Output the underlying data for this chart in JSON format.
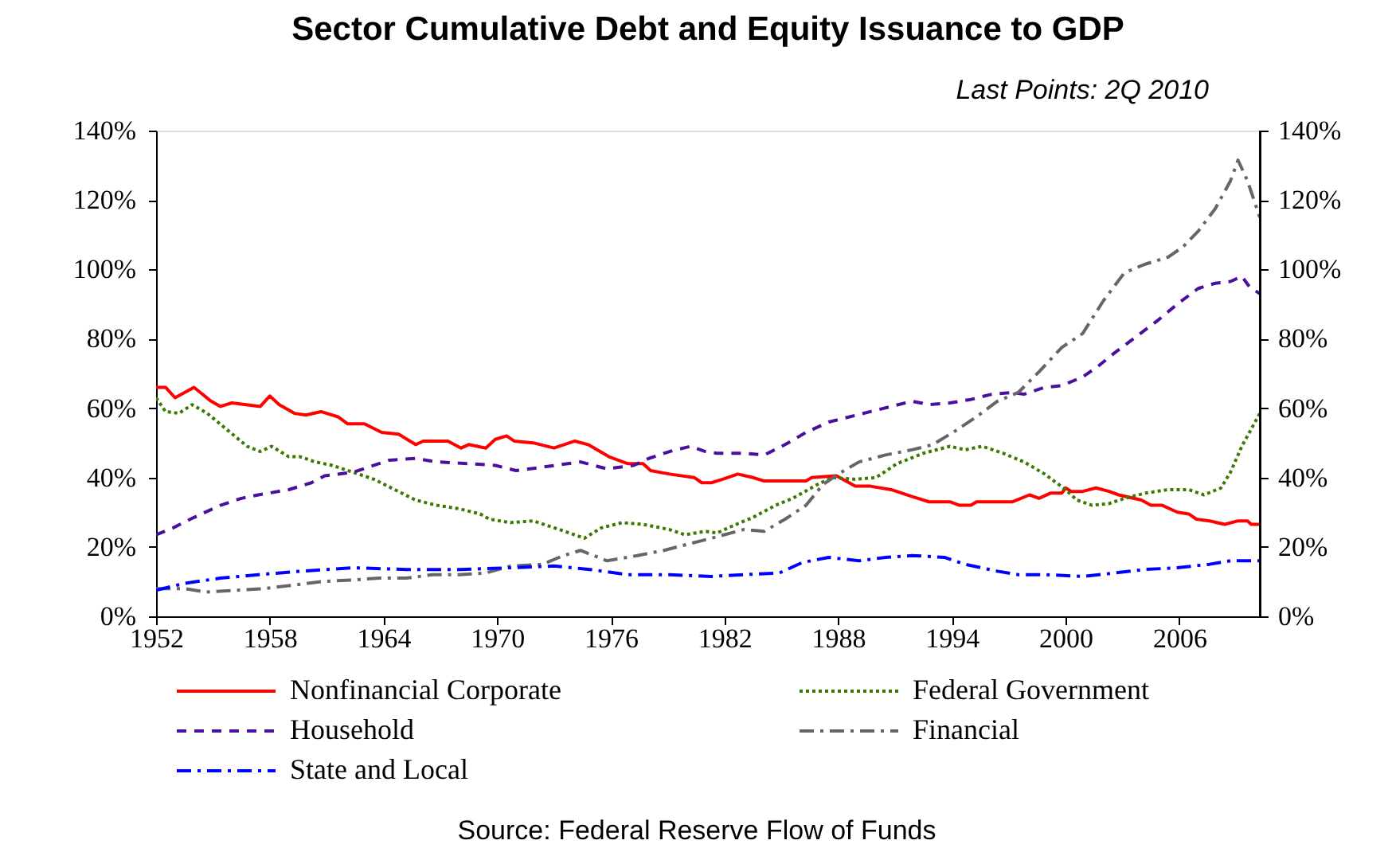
{
  "chart_data": {
    "type": "line",
    "title": "Sector Cumulative Debt and Equity Issuance to GDP",
    "subtitle": "Last Points: 2Q 2010",
    "annotations": [
      "Source: Federal Reserve Flow of Funds"
    ],
    "xlim": [
      1952,
      2010.25
    ],
    "xticks": [
      1952,
      1958,
      1964,
      1970,
      1976,
      1982,
      1988,
      1994,
      2000,
      2006
    ],
    "ylim": [
      0,
      140
    ],
    "yticks": [
      {
        "value": 0,
        "label": "0%"
      },
      {
        "value": 20,
        "label": "20%"
      },
      {
        "value": 40,
        "label": "40%"
      },
      {
        "value": 60,
        "label": "60%"
      },
      {
        "value": 80,
        "label": "80%"
      },
      {
        "value": 100,
        "label": "100%"
      },
      {
        "value": 120,
        "label": "120%"
      },
      {
        "value": 140,
        "label": "140%"
      }
    ],
    "y2lim": [
      0,
      140
    ],
    "y2ticks": [
      {
        "value": 0,
        "label": "0%"
      },
      {
        "value": 20,
        "label": "20%"
      },
      {
        "value": 40,
        "label": "40%"
      },
      {
        "value": 60,
        "label": "60%"
      },
      {
        "value": 80,
        "label": "80%"
      },
      {
        "value": 100,
        "label": "100%"
      },
      {
        "value": 120,
        "label": "120%"
      },
      {
        "value": 140,
        "label": "140%"
      }
    ],
    "legend": "bottom",
    "series": [
      {
        "name": "Nonfinancial Corporate",
        "color": "#ff0000",
        "line_style": "solid",
        "x": [
          1952,
          1952.5,
          1953,
          1954,
          1954.9,
          1955.4,
          1956,
          1957.5,
          1958,
          1958.5,
          1959.3,
          1959.9,
          1960.7,
          1961.6,
          1962.1,
          1963,
          1963.9,
          1964.8,
          1965.7,
          1966.1,
          1967.4,
          1968.1,
          1968.5,
          1969.4,
          1969.9,
          1970.5,
          1970.9,
          1971.9,
          1973,
          1974.1,
          1974.8,
          1975.9,
          1976.9,
          1977.7,
          1978.1,
          1979.1,
          1980.4,
          1980.8,
          1981.3,
          1981.9,
          1982.7,
          1983.5,
          1984.1,
          1986.3,
          1986.6,
          1987.9,
          1988.9,
          1989.7,
          1990.8,
          1991.9,
          1992.8,
          1993.9,
          1994.4,
          1995,
          1995.3,
          1997.2,
          1998.1,
          1998.6,
          1999.2,
          1999.8,
          2000,
          2000.3,
          2000.9,
          2001.6,
          2002.3,
          2002.8,
          2004,
          2004.5,
          2005.1,
          2005.9,
          2006.5,
          2006.9,
          2007.6,
          2008.4,
          2009.1,
          2009.6,
          2009.8,
          2010.25
        ],
        "values": [
          66,
          66,
          63,
          66,
          62,
          60.5,
          61.5,
          60.5,
          63.5,
          61,
          58.5,
          58,
          59,
          57.5,
          55.5,
          55.5,
          53,
          52.5,
          49.5,
          50.5,
          50.5,
          48.5,
          49.5,
          48.5,
          51,
          52,
          50.5,
          50,
          48.5,
          50.5,
          49.5,
          46,
          44,
          44,
          42,
          41,
          40,
          38.5,
          38.5,
          39.5,
          41,
          40,
          39,
          39,
          40,
          40.5,
          37.5,
          37.5,
          36.5,
          34.5,
          33,
          33,
          32,
          32,
          33,
          33,
          35,
          34,
          35.5,
          35.5,
          37,
          36,
          36,
          37,
          36,
          35,
          33.5,
          32,
          32,
          30,
          29.5,
          28,
          27.5,
          26.5,
          27.5,
          27.5,
          26.5,
          26.5
        ]
      },
      {
        "name": "Federal Government",
        "color": "#3a7a00",
        "line_style": "dotted",
        "x": [
          1952,
          1952.5,
          1953.2,
          1953.9,
          1954.7,
          1955.7,
          1956.8,
          1957.5,
          1958.1,
          1959,
          1959.6,
          1960.4,
          1961.3,
          1962.4,
          1963.5,
          1964.6,
          1965.7,
          1966.8,
          1968,
          1969.1,
          1969.6,
          1970.7,
          1971.9,
          1973.3,
          1974.6,
          1975.5,
          1976.6,
          1977.7,
          1979.1,
          1979.9,
          1981,
          1981.6,
          1982.4,
          1983.5,
          1984.7,
          1985.6,
          1986.9,
          1987.7,
          1988.9,
          1990,
          1991.1,
          1992.5,
          1993.9,
          1994.7,
          1995.6,
          1996.7,
          1997.8,
          1998.9,
          2000,
          2000.6,
          2001.4,
          2002.3,
          2003.1,
          2004.2,
          2005.4,
          2006.5,
          2007.3,
          2008.2,
          2008.7,
          2009.3,
          2010.25
        ],
        "values": [
          63,
          59,
          58.5,
          61,
          58.5,
          54,
          49,
          47.5,
          49,
          46,
          46,
          44.5,
          43.5,
          41.5,
          39.5,
          36.5,
          33.5,
          32,
          31,
          29.5,
          28,
          27,
          27.5,
          25,
          22.5,
          25.5,
          27,
          26.5,
          25,
          23.5,
          24.5,
          24,
          26,
          28.5,
          32,
          34,
          38,
          40,
          39.5,
          40,
          44,
          47,
          49,
          48,
          49,
          47,
          44.5,
          41,
          36.5,
          33.5,
          32,
          32.5,
          34,
          35.5,
          36.5,
          36.5,
          35,
          37,
          41.5,
          49,
          58.5
        ]
      },
      {
        "name": "Household",
        "color": "#4b0f9e",
        "line_style": "dashed",
        "x": [
          1952,
          1952.9,
          1954,
          1955.4,
          1956.5,
          1957.4,
          1959,
          1960.2,
          1960.9,
          1962.4,
          1963.2,
          1964.3,
          1965.7,
          1966.8,
          1968.5,
          1969.9,
          1971,
          1972.4,
          1974.4,
          1975.8,
          1977.2,
          1978,
          1979.1,
          1980.2,
          1981,
          1981.6,
          1983,
          1984.1,
          1985.2,
          1986.3,
          1987.5,
          1988.6,
          1989.7,
          1990.8,
          1991.9,
          1992.8,
          1993.9,
          1995,
          1996.1,
          1997.2,
          1997.8,
          1998.9,
          1999.8,
          2000.9,
          2001.7,
          2002.6,
          2003.7,
          2004.8,
          2005.9,
          2007,
          2007.9,
          2008.7,
          2009.3,
          2009.7,
          2010.25
        ],
        "values": [
          23.5,
          25.5,
          28.5,
          32,
          34,
          35,
          36.5,
          38.5,
          40.5,
          41.5,
          43,
          45,
          45.5,
          44.5,
          44,
          43.5,
          42,
          43,
          44.5,
          42.5,
          43.5,
          45.5,
          47.5,
          49,
          47.5,
          47,
          47,
          46.5,
          49.5,
          53,
          56,
          57.5,
          59,
          60.5,
          62,
          61,
          61.5,
          62.5,
          64,
          64.5,
          64,
          66,
          66.5,
          69,
          72,
          76,
          80.5,
          85,
          90,
          94.5,
          96,
          96.5,
          98,
          95,
          93
        ]
      },
      {
        "name": "Financial",
        "color": "#666666",
        "line_style": "dashdot",
        "x": [
          1952,
          1953.5,
          1954.6,
          1956.3,
          1957.7,
          1959.3,
          1960.7,
          1962.4,
          1963.8,
          1965.2,
          1966.6,
          1968,
          1969.4,
          1970.7,
          1972.4,
          1973.5,
          1974.4,
          1975.8,
          1977.4,
          1978.8,
          1980.2,
          1981.3,
          1983,
          1984.1,
          1985.2,
          1986.3,
          1987.2,
          1988,
          1989.1,
          1990.5,
          1991.9,
          1993,
          1994.2,
          1995.3,
          1996.4,
          1997.5,
          1998.6,
          1999.8,
          2000.9,
          2002,
          2003.1,
          2004.2,
          2005.4,
          2006.2,
          2007,
          2007.9,
          2008.7,
          2009.1,
          2009.6,
          2010.25
        ],
        "values": [
          8,
          8,
          7,
          7.5,
          8,
          9,
          10,
          10.5,
          11,
          11,
          12,
          12,
          12.5,
          14.5,
          15,
          17.5,
          19,
          16,
          17.5,
          19,
          21,
          22.5,
          25,
          24.5,
          28,
          32,
          38,
          41,
          44.5,
          46.5,
          48,
          49.5,
          53.5,
          57.5,
          62,
          64.5,
          70.5,
          77.5,
          81.5,
          91,
          99,
          101.5,
          103.5,
          106.5,
          111,
          117.5,
          125.5,
          131.5,
          125.5,
          115
        ]
      },
      {
        "name": "State and Local",
        "color": "#0000ff",
        "line_style": "dashdot",
        "x": [
          1952,
          1953.5,
          1955.4,
          1957.4,
          1959.6,
          1962.4,
          1965.2,
          1968,
          1970.7,
          1973,
          1974.9,
          1976.9,
          1979.1,
          1981.3,
          1983,
          1984.9,
          1986.1,
          1987.5,
          1989.1,
          1990.5,
          1991.9,
          1993.6,
          1994.7,
          1996.4,
          1997.5,
          1998.9,
          2000.9,
          2002.6,
          2004.2,
          2005.9,
          2007.6,
          2008.7,
          2010.25
        ],
        "values": [
          7.5,
          9.5,
          11,
          12,
          13,
          14,
          13.5,
          13.5,
          14,
          14.5,
          13.5,
          12,
          12,
          11.5,
          12,
          12.5,
          15.5,
          17,
          16,
          17,
          17.5,
          17,
          15,
          13,
          12,
          12,
          11.5,
          12.5,
          13.5,
          14,
          15,
          16,
          16
        ]
      }
    ]
  }
}
